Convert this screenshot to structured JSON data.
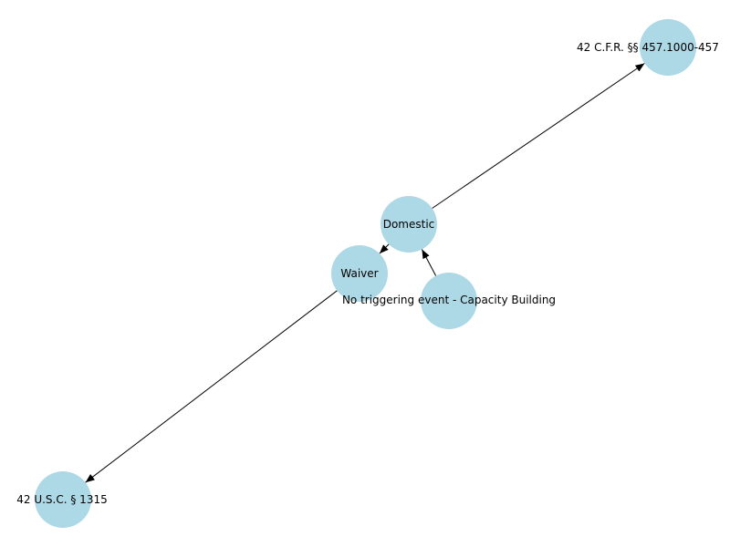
{
  "graph": {
    "node_color": "#add8e6",
    "edge_color": "#000000",
    "directed": true,
    "nodes": [
      {
        "id": "domestic",
        "label": "Domestic"
      },
      {
        "id": "cfr",
        "label": "42 C.F.R. §§ 457.1000-457"
      },
      {
        "id": "waiver",
        "label": "Waiver"
      },
      {
        "id": "capacity",
        "label": "No triggering event - Capacity Building"
      },
      {
        "id": "usc",
        "label": "42 U.S.C. § 1315"
      }
    ],
    "edges": [
      {
        "source": "domestic",
        "target": "cfr"
      },
      {
        "source": "domestic",
        "target": "waiver"
      },
      {
        "source": "capacity",
        "target": "domestic"
      },
      {
        "source": "waiver",
        "target": "usc"
      }
    ]
  }
}
